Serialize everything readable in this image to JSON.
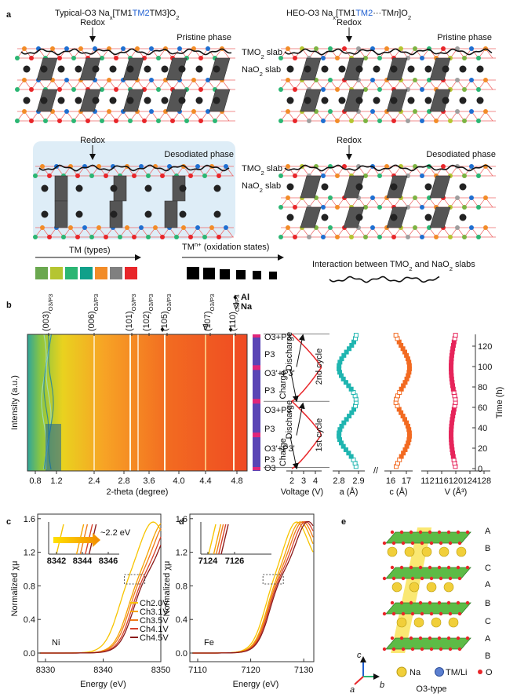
{
  "panel_labels": [
    "a",
    "b",
    "c",
    "d",
    "e"
  ],
  "a": {
    "left_title": [
      "Typical-O3 Na",
      "x",
      "[TM1",
      "TM2",
      "TM3]O",
      "2"
    ],
    "right_title": [
      "HEO-O3 Na",
      "x",
      "[TM1",
      "TM2",
      "···TM",
      "n",
      "]O",
      "2"
    ],
    "redox": "Redox",
    "pristine": "Pristine phase",
    "desodiated": "Desodiated phase",
    "tmo2_slab": [
      "TMO",
      "2",
      " slab"
    ],
    "nao2_slab": [
      "NaO",
      "2",
      " slab"
    ],
    "legend_tm": "TM (types)",
    "legend_ox": [
      "TM",
      "n+",
      " (oxidation states)"
    ],
    "legend_interaction": [
      "Interaction between TMO",
      "2",
      " and NaO",
      "2",
      " slabs"
    ]
  },
  "b": {
    "peaks": [
      [
        "(003)",
        "O3/P3"
      ],
      [
        "(006)",
        "O3/P3"
      ],
      [
        "(101)",
        "O3/P3"
      ],
      [
        "(102)",
        "O3/P3"
      ],
      [
        "(105)",
        "O3/P3"
      ],
      [
        "(107)",
        "O3/P3"
      ],
      [
        "(110)",
        "O3/P3"
      ]
    ],
    "legend": [
      [
        "♦",
        "Al"
      ],
      [
        "∇",
        "Na"
      ]
    ],
    "xticks": [
      "0.8",
      "1.2",
      "2.4",
      "2.8",
      "3.6",
      "4.0",
      "4.4",
      "4.8"
    ],
    "xlabel": "2-theta (degree)",
    "ylabel": "Intensity (a.u.)",
    "phases": [
      "O3+P3",
      "P3",
      "O3'+P3'",
      "P3",
      "O3+P3",
      "P3",
      "O3'+P3'",
      "P3",
      "O3"
    ],
    "voltage": {
      "xticks": [
        "2",
        "3",
        "4"
      ],
      "xlabel": "Voltage (V)",
      "annotations": [
        "Discharge",
        "Charge",
        "Discharge",
        "Charge"
      ],
      "cycles": [
        "2nd cycle",
        "1st cycle"
      ]
    },
    "a_axis": {
      "xticks": [
        "2.8",
        "2.9"
      ],
      "xlabel": "a (Å)"
    },
    "c_axis": {
      "xticks": [
        "16",
        "17"
      ],
      "xlabel": "c (Å)"
    },
    "v_axis": {
      "xticks": [
        "112",
        "116",
        "120",
        "124",
        "128"
      ],
      "xlabel": "V (Å³)"
    },
    "time": {
      "label": "Time (h)",
      "ticks": [
        "0",
        "20",
        "40",
        "60",
        "80",
        "100",
        "120"
      ]
    }
  },
  "c": {
    "ylabel": "Normalized χμ",
    "xlabel": "Energy (eV)",
    "yticks": [
      "0.0",
      "0.4",
      "0.8",
      "1.2",
      "1.6"
    ],
    "xticks": [
      "8330",
      "8340",
      "8350"
    ],
    "element": "Ni",
    "inset_xticks": [
      "8342",
      "8344",
      "8346"
    ],
    "inset_note": "~2.2 eV",
    "legend": [
      "Ch2.0V",
      "Ch3.1V",
      "Ch3.5V",
      "Ch4.1V",
      "Ch4.5V"
    ]
  },
  "d": {
    "ylabel": "Normalized χμ",
    "xlabel": "Energy (eV)",
    "yticks": [
      "0.0",
      "0.4",
      "0.8",
      "1.2",
      "1.6"
    ],
    "xticks": [
      "7110",
      "7120",
      "7130"
    ],
    "element": "Fe",
    "inset_xticks": [
      "7124",
      "7126"
    ]
  },
  "e": {
    "stacking": [
      "A",
      "B",
      "C",
      "A",
      "B",
      "C",
      "A",
      "B"
    ],
    "axes": [
      "c",
      "a",
      "b"
    ],
    "legend": [
      "Na",
      "TM/Li",
      "O"
    ],
    "caption": "O3-type"
  }
}
